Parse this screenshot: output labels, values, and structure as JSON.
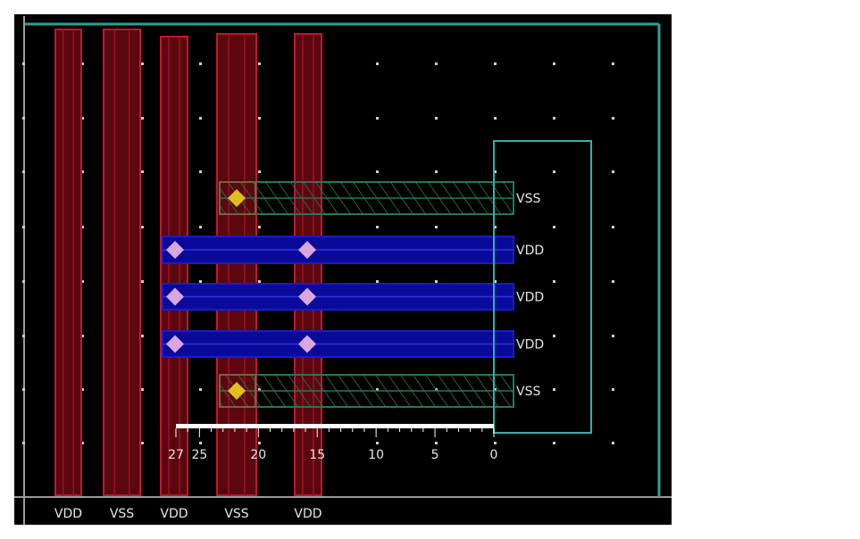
{
  "colors": {
    "background": "#000000",
    "metal_vertical": "#c0182a",
    "metal_power_vdd": "#1a1ad0",
    "metal_power_vss": "#1f7a5a",
    "boundary": "#2fb3a8",
    "via_vss": "#e0c020",
    "via_vdd": "#d9a6e0",
    "grid_dot": "#d0d0d0",
    "ruler": "#ffffff"
  },
  "vertical_rails": [
    {
      "label": "VDD"
    },
    {
      "label": "VSS"
    },
    {
      "label": "VDD"
    },
    {
      "label": "VSS"
    },
    {
      "label": "VDD"
    }
  ],
  "horizontal_rails": [
    {
      "label": "VSS",
      "type": "vss"
    },
    {
      "label": "VDD",
      "type": "vdd"
    },
    {
      "label": "VDD",
      "type": "vdd"
    },
    {
      "label": "VDD",
      "type": "vdd"
    },
    {
      "label": "VSS",
      "type": "vss"
    }
  ],
  "ruler": {
    "ticks": [
      "27",
      "25",
      "20",
      "15",
      "10",
      "5",
      "0"
    ],
    "max": 27
  }
}
